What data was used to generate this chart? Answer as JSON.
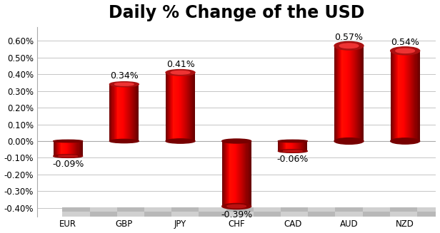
{
  "categories": [
    "EUR",
    "GBP",
    "JPY",
    "CHF",
    "CAD",
    "AUD",
    "NZD"
  ],
  "values": [
    -0.09,
    0.34,
    0.41,
    -0.39,
    -0.06,
    0.57,
    0.54
  ],
  "labels": [
    "-0.09%",
    "0.34%",
    "0.41%",
    "-0.39%",
    "-0.06%",
    "0.57%",
    "0.54%"
  ],
  "title": "Daily % Change of the USD",
  "ylim": [
    -0.45,
    0.68
  ],
  "yticks": [
    -0.4,
    -0.3,
    -0.2,
    -0.1,
    0.0,
    0.1,
    0.2,
    0.3,
    0.4,
    0.5,
    0.6
  ],
  "background_color": "#ffffff",
  "grid_color": "#bbbbbb",
  "title_fontsize": 17,
  "label_fontsize": 9,
  "tick_fontsize": 8.5,
  "bar_width": 0.52
}
